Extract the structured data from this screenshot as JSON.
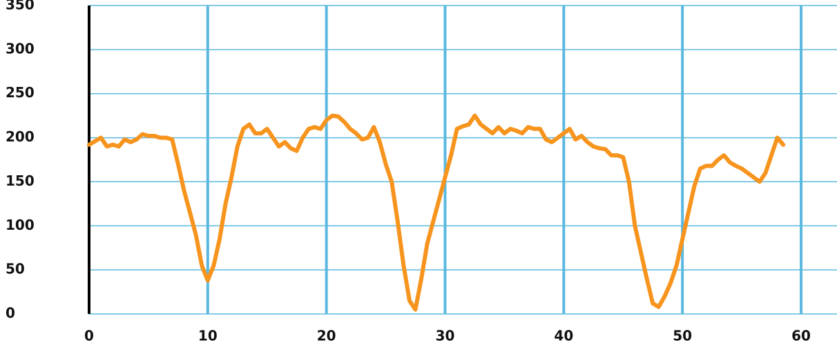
{
  "chart_data": {
    "type": "line",
    "color": "#f7941d",
    "grid": true,
    "x": [
      0,
      0.5,
      1,
      1.5,
      2,
      2.5,
      3,
      3.5,
      4,
      4.5,
      5,
      5.5,
      6,
      6.5,
      7,
      7.5,
      8,
      8.5,
      9,
      9.5,
      10,
      10.5,
      11,
      11.5,
      12,
      12.5,
      13,
      13.5,
      14,
      14.5,
      15,
      15.5,
      16,
      16.5,
      17,
      17.5,
      18,
      18.5,
      19,
      19.5,
      20,
      20.5,
      21,
      21.5,
      22,
      22.5,
      23,
      23.5,
      24,
      24.5,
      25,
      25.5,
      26,
      26.5,
      27,
      27.5,
      28,
      28.5,
      29,
      29.5,
      30,
      30.5,
      31,
      31.5,
      32,
      32.5,
      33,
      33.5,
      34,
      34.5,
      35,
      35.5,
      36,
      36.5,
      37,
      37.5,
      38,
      38.5,
      39,
      39.5,
      40,
      40.5,
      41,
      41.5,
      42,
      42.5,
      43,
      43.5,
      44,
      44.5,
      45,
      45.5,
      46,
      46.5,
      47,
      47.5,
      48,
      48.5,
      49,
      49.5,
      50,
      50.5,
      51,
      51.5,
      52,
      52.5,
      53,
      53.5,
      54,
      54.5,
      55,
      55.5,
      56,
      56.5,
      57,
      57.5,
      58,
      58.5
    ],
    "values": [
      192,
      196,
      200,
      190,
      192,
      190,
      198,
      195,
      198,
      204,
      202,
      202,
      200,
      200,
      198,
      170,
      140,
      115,
      90,
      55,
      38,
      55,
      85,
      125,
      155,
      190,
      210,
      215,
      205,
      205,
      210,
      200,
      190,
      195,
      188,
      185,
      200,
      210,
      212,
      210,
      220,
      225,
      224,
      218,
      210,
      205,
      198,
      200,
      212,
      195,
      170,
      150,
      105,
      55,
      15,
      5,
      40,
      80,
      105,
      130,
      155,
      180,
      210,
      213,
      215,
      225,
      215,
      210,
      205,
      212,
      205,
      210,
      208,
      205,
      212,
      210,
      210,
      198,
      195,
      200,
      205,
      210,
      198,
      202,
      195,
      190,
      188,
      187,
      180,
      180,
      178,
      150,
      100,
      70,
      40,
      12,
      8,
      20,
      35,
      55,
      85,
      115,
      145,
      165,
      168,
      168,
      175,
      180,
      172,
      168,
      165,
      160,
      155,
      150,
      160,
      180,
      200,
      192
    ],
    "xlim": [
      0,
      60
    ],
    "xticks": [
      0,
      10,
      20,
      30,
      40,
      50,
      60
    ],
    "ylim": [
      0,
      350
    ],
    "yticks": [
      0,
      50,
      100,
      150,
      200,
      250,
      300,
      350
    ]
  }
}
